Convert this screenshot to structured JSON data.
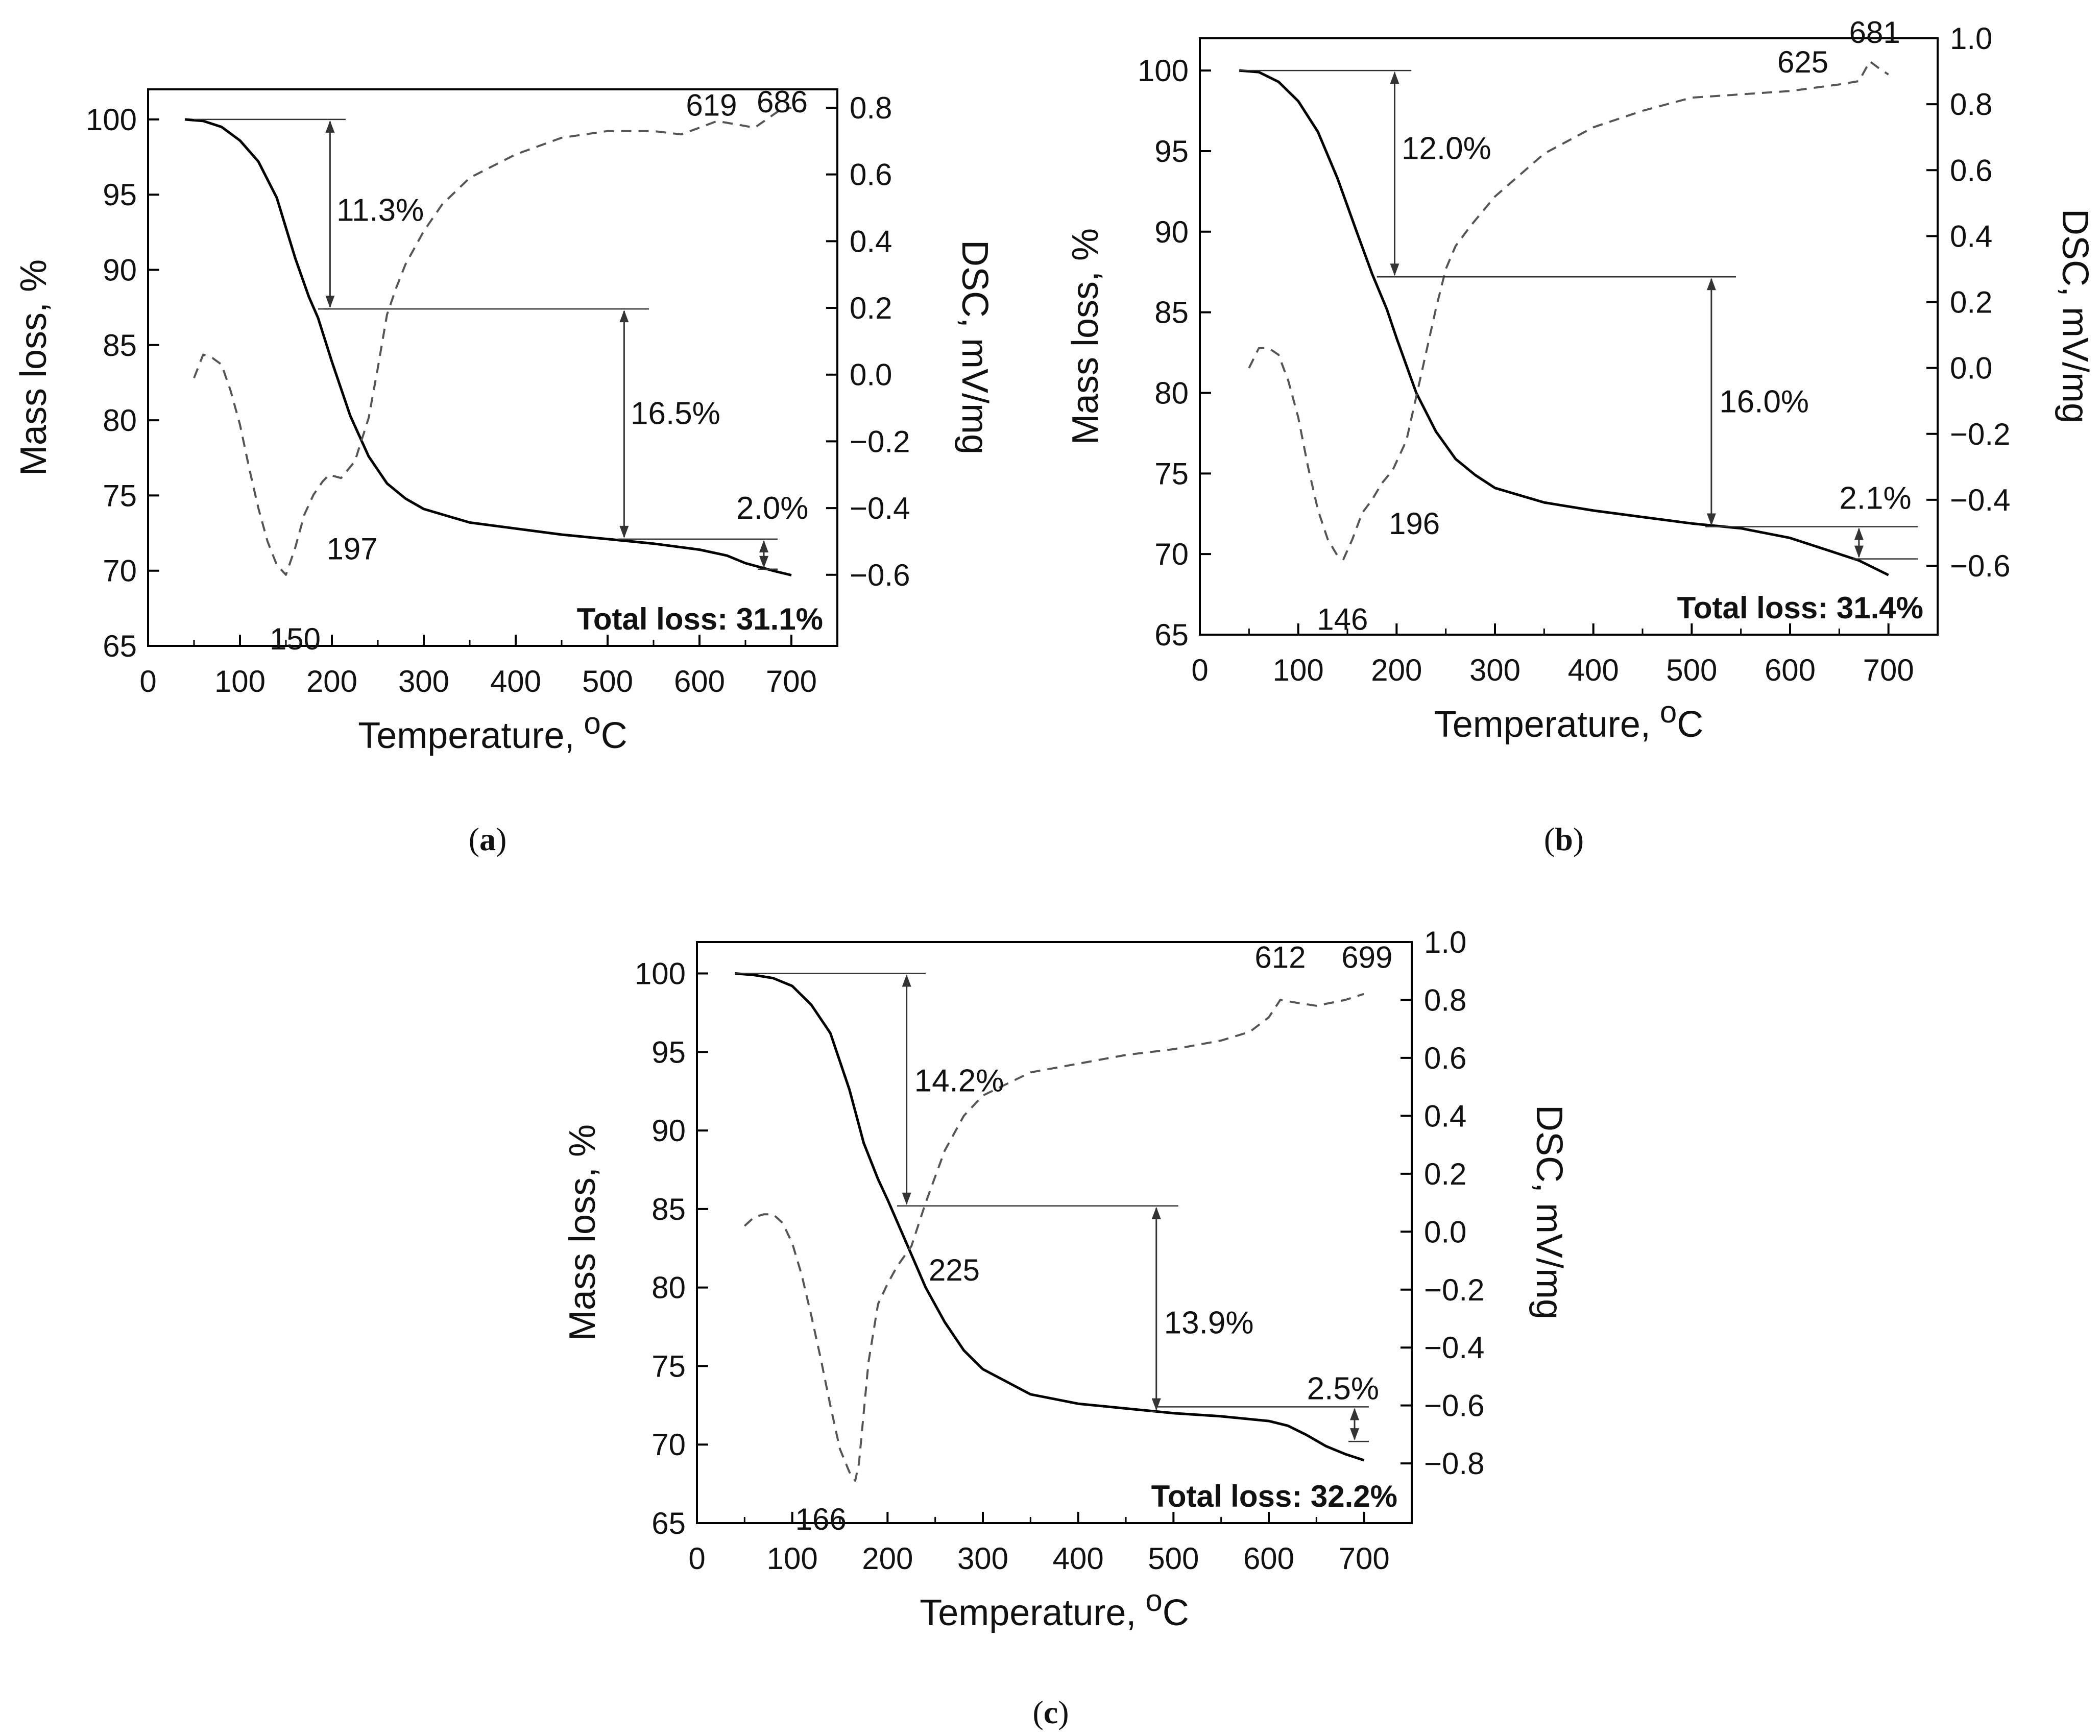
{
  "colors": {
    "tga": "#000000",
    "dsc": "#555555",
    "axis": "#000000",
    "annotation": "#333333"
  },
  "chart_data": [
    {
      "type": "line",
      "panel_label": "a",
      "xlabel": "Temperature,",
      "xlabel_unit_sup": "o",
      "xlabel_unit": "C",
      "ylabel": "Mass loss, %",
      "y2label": "DSC, mV/mg",
      "xlim": [
        0,
        750
      ],
      "ylim": [
        65,
        102
      ],
      "y2lim": [
        -0.813,
        0.855
      ],
      "x_ticks": [
        0,
        100,
        200,
        300,
        400,
        500,
        600,
        700
      ],
      "y_ticks": [
        65,
        70,
        75,
        80,
        85,
        90,
        95,
        100
      ],
      "y2_ticks": [
        -0.6,
        -0.4,
        -0.2,
        0.0,
        0.2,
        0.4,
        0.6,
        0.8
      ],
      "y2_tick_labels": [
        "−0.6",
        "−0.4",
        "−0.2",
        "0.0",
        "0.2",
        "0.4",
        "0.6",
        "0.8"
      ],
      "series": [
        {
          "name": "TGA",
          "axis": "left",
          "style": "solid",
          "x": [
            40,
            60,
            80,
            100,
            120,
            140,
            160,
            175,
            185,
            200,
            220,
            240,
            260,
            280,
            300,
            350,
            400,
            450,
            500,
            550,
            600,
            630,
            650,
            680,
            700
          ],
          "y": [
            100,
            99.9,
            99.5,
            98.6,
            97.2,
            94.8,
            90.8,
            88.2,
            86.8,
            83.9,
            80.3,
            77.6,
            75.8,
            74.8,
            74.1,
            73.2,
            72.8,
            72.4,
            72.1,
            71.8,
            71.4,
            71.0,
            70.5,
            70.0,
            69.7
          ]
        },
        {
          "name": "DSC",
          "axis": "right",
          "style": "dashed",
          "x": [
            50,
            60,
            70,
            80,
            90,
            100,
            110,
            120,
            130,
            140,
            150,
            160,
            170,
            180,
            190,
            197,
            210,
            225,
            240,
            250,
            260,
            270,
            280,
            300,
            320,
            350,
            400,
            450,
            500,
            550,
            580,
            600,
            619,
            640,
            660,
            686,
            700
          ],
          "y": [
            -0.01,
            0.06,
            0.05,
            0.03,
            -0.05,
            -0.15,
            -0.28,
            -0.4,
            -0.5,
            -0.57,
            -0.6,
            -0.52,
            -0.42,
            -0.36,
            -0.32,
            -0.3,
            -0.31,
            -0.26,
            -0.13,
            0.02,
            0.18,
            0.26,
            0.33,
            0.43,
            0.51,
            0.59,
            0.66,
            0.71,
            0.73,
            0.73,
            0.72,
            0.74,
            0.76,
            0.75,
            0.74,
            0.79,
            0.8
          ]
        }
      ],
      "steps": [
        {
          "x_start": 50,
          "x_end": 215,
          "x_arrow": 198,
          "y_top": 100,
          "y_bottom": 87.4,
          "label": "11.3%",
          "label_x": 205,
          "label_y": 94
        },
        {
          "x_start": 185,
          "x_end": 545,
          "x_arrow": 518,
          "y_top": 87.4,
          "y_bottom": 72.1,
          "label": "16.5%",
          "label_x": 525,
          "label_y": 80.5
        },
        {
          "x_start": 518,
          "x_end": 685,
          "x_arrow": 670,
          "y_top": 72.1,
          "y_bottom": 70.1,
          "label": "2.0%",
          "label_x": 640,
          "label_y": 74.2
        }
      ],
      "peak_labels": [
        {
          "text": "150",
          "x": 160,
          "dsc": -0.79
        },
        {
          "text": "197",
          "x": 222,
          "dsc": -0.52
        },
        {
          "text": "619",
          "x": 613,
          "dsc": 0.81
        },
        {
          "text": "686",
          "x": 690,
          "dsc": 0.82
        }
      ],
      "total_loss": "Total loss: 31.1%"
    },
    {
      "type": "line",
      "panel_label": "b",
      "xlabel": "Temperature,",
      "xlabel_unit_sup": "o",
      "xlabel_unit": "C",
      "ylabel": "Mass loss, %",
      "y2label": "DSC, mV/mg",
      "xlim": [
        0,
        750
      ],
      "ylim": [
        65,
        102
      ],
      "y2lim": [
        -0.809,
        1.0
      ],
      "x_ticks": [
        0,
        100,
        200,
        300,
        400,
        500,
        600,
        700
      ],
      "y_ticks": [
        65,
        70,
        75,
        80,
        85,
        90,
        95,
        100
      ],
      "y2_ticks": [
        -0.6,
        -0.4,
        -0.2,
        0.0,
        0.2,
        0.4,
        0.6,
        0.8,
        1.0
      ],
      "y2_tick_labels": [
        "−0.6",
        "−0.4",
        "−0.2",
        "0.0",
        "0.2",
        "0.4",
        "0.6",
        "0.8",
        "1.0"
      ],
      "series": [
        {
          "name": "TGA",
          "axis": "left",
          "style": "solid",
          "x": [
            40,
            60,
            80,
            100,
            120,
            140,
            160,
            175,
            190,
            200,
            220,
            240,
            260,
            280,
            300,
            350,
            400,
            450,
            500,
            550,
            600,
            640,
            670,
            700
          ],
          "y": [
            100,
            99.9,
            99.3,
            98.1,
            96.2,
            93.3,
            89.9,
            87.4,
            85.2,
            83.4,
            80.0,
            77.6,
            75.9,
            74.9,
            74.1,
            73.2,
            72.7,
            72.3,
            71.9,
            71.6,
            71.0,
            70.2,
            69.6,
            68.7
          ]
        },
        {
          "name": "DSC",
          "axis": "right",
          "style": "dashed",
          "x": [
            50,
            60,
            70,
            80,
            90,
            100,
            110,
            120,
            130,
            140,
            146,
            155,
            165,
            175,
            185,
            196,
            210,
            225,
            240,
            250,
            260,
            275,
            300,
            350,
            400,
            450,
            500,
            550,
            600,
            625,
            650,
            670,
            681,
            690,
            700
          ],
          "y": [
            0.0,
            0.06,
            0.06,
            0.04,
            -0.04,
            -0.15,
            -0.3,
            -0.43,
            -0.52,
            -0.57,
            -0.58,
            -0.52,
            -0.44,
            -0.4,
            -0.35,
            -0.31,
            -0.22,
            -0.02,
            0.18,
            0.3,
            0.37,
            0.43,
            0.52,
            0.65,
            0.73,
            0.78,
            0.82,
            0.83,
            0.84,
            0.85,
            0.86,
            0.87,
            0.93,
            0.91,
            0.89
          ]
        }
      ],
      "steps": [
        {
          "x_start": 40,
          "x_end": 215,
          "x_arrow": 198,
          "y_top": 100,
          "y_bottom": 87.2,
          "label": "12.0%",
          "label_x": 205,
          "label_y": 95.2
        },
        {
          "x_start": 180,
          "x_end": 545,
          "x_arrow": 520,
          "y_top": 87.2,
          "y_bottom": 71.7,
          "label": "16.0%",
          "label_x": 528,
          "label_y": 79.5
        },
        {
          "x_start": 520,
          "x_end": 730,
          "x_arrow": 670,
          "y_top": 71.7,
          "y_bottom": 69.7,
          "label": "2.1%",
          "label_x": 650,
          "label_y": 73.5
        }
      ],
      "peak_labels": [
        {
          "text": "146",
          "x": 145,
          "dsc": -0.76
        },
        {
          "text": "196",
          "x": 218,
          "dsc": -0.47
        },
        {
          "text": "625",
          "x": 613,
          "dsc": 0.93
        },
        {
          "text": "681",
          "x": 686,
          "dsc": 1.02
        }
      ],
      "total_loss": "Total loss: 31.4%"
    },
    {
      "type": "line",
      "panel_label": "c",
      "xlabel": "Temperature,",
      "xlabel_unit_sup": "o",
      "xlabel_unit": "C",
      "ylabel": "Mass loss, %",
      "y2label": "DSC, mV/mg",
      "xlim": [
        0,
        750
      ],
      "ylim": [
        65,
        102
      ],
      "y2lim": [
        -1.006,
        1.0
      ],
      "x_ticks": [
        0,
        100,
        200,
        300,
        400,
        500,
        600,
        700
      ],
      "y_ticks": [
        65,
        70,
        75,
        80,
        85,
        90,
        95,
        100
      ],
      "y2_ticks": [
        -0.8,
        -0.6,
        -0.4,
        -0.2,
        0.0,
        0.2,
        0.4,
        0.6,
        0.8,
        1.0
      ],
      "y2_tick_labels": [
        "−0.8",
        "−0.6",
        "−0.4",
        "−0.2",
        "0.0",
        "0.2",
        "0.4",
        "0.6",
        "0.8",
        "1.0"
      ],
      "series": [
        {
          "name": "TGA",
          "axis": "left",
          "style": "solid",
          "x": [
            40,
            60,
            80,
            100,
            120,
            140,
            160,
            175,
            190,
            200,
            220,
            240,
            260,
            280,
            300,
            350,
            400,
            450,
            500,
            550,
            600,
            620,
            640,
            660,
            680,
            700
          ],
          "y": [
            100,
            99.9,
            99.7,
            99.2,
            98.0,
            96.2,
            92.6,
            89.2,
            86.9,
            85.6,
            82.8,
            80.0,
            77.8,
            76.0,
            74.8,
            73.2,
            72.6,
            72.3,
            72.0,
            71.8,
            71.5,
            71.2,
            70.6,
            69.9,
            69.4,
            69.0
          ]
        },
        {
          "name": "DSC",
          "axis": "right",
          "style": "dashed",
          "x": [
            50,
            60,
            70,
            80,
            90,
            100,
            110,
            120,
            130,
            140,
            150,
            160,
            166,
            170,
            180,
            190,
            200,
            210,
            225,
            240,
            260,
            280,
            300,
            350,
            400,
            450,
            500,
            550,
            580,
            600,
            612,
            630,
            650,
            680,
            699,
            700
          ],
          "y": [
            0.02,
            0.05,
            0.06,
            0.06,
            0.03,
            -0.04,
            -0.15,
            -0.29,
            -0.44,
            -0.6,
            -0.75,
            -0.83,
            -0.86,
            -0.8,
            -0.45,
            -0.25,
            -0.18,
            -0.12,
            -0.05,
            0.1,
            0.28,
            0.4,
            0.47,
            0.55,
            0.58,
            0.61,
            0.63,
            0.66,
            0.69,
            0.74,
            0.8,
            0.79,
            0.78,
            0.8,
            0.82,
            0.82
          ]
        }
      ],
      "steps": [
        {
          "x_start": 40,
          "x_end": 240,
          "x_arrow": 220,
          "y_top": 100,
          "y_bottom": 85.2,
          "label": "14.2%",
          "label_x": 228,
          "label_y": 93.2
        },
        {
          "x_start": 210,
          "x_end": 505,
          "x_arrow": 482,
          "y_top": 85.2,
          "y_bottom": 72.1,
          "label": "13.9%",
          "label_x": 490,
          "label_y": 77.8
        },
        {
          "x_start": 482,
          "x_end": 705,
          "x_arrow": 690,
          "y_top": 72.4,
          "y_bottom": 70.2,
          "label": "2.5%",
          "label_x": 640,
          "label_y": 73.6
        }
      ],
      "peak_labels": [
        {
          "text": "166",
          "x": 130,
          "dsc": -0.99
        },
        {
          "text": "225",
          "x": 270,
          "dsc": -0.13
        },
        {
          "text": "612",
          "x": 612,
          "dsc": 0.95
        },
        {
          "text": "699",
          "x": 703,
          "dsc": 0.95
        }
      ],
      "total_loss": "Total loss: 32.2%"
    }
  ]
}
